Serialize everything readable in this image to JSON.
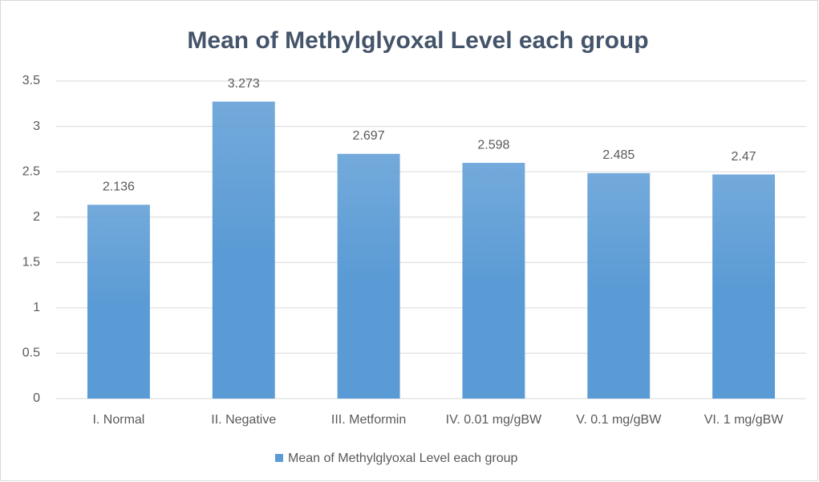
{
  "chart_data": {
    "type": "bar",
    "title": "Mean of Methylglyoxal Level each group",
    "categories": [
      "I. Normal",
      "II. Negative",
      "III. Metformin",
      "IV. 0.01 mg/gBW",
      "V. 0.1 mg/gBW",
      "VI. 1 mg/gBW"
    ],
    "series": [
      {
        "name": "Mean of Methylglyoxal Level each group",
        "color": "#5b9bd5",
        "values": [
          2.136,
          3.273,
          2.697,
          2.598,
          2.485,
          2.47
        ]
      }
    ],
    "ylim": [
      0,
      3.5
    ],
    "yticks": [
      0,
      0.5,
      1,
      1.5,
      2,
      2.5,
      3,
      3.5
    ],
    "grid": true,
    "legend": "bottom"
  }
}
